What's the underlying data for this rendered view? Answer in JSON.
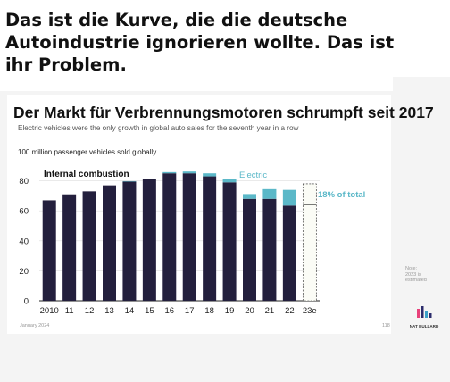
{
  "headline": [
    "Das ist die Kurve, die die deutsche",
    "Autoindustrie ignorieren wollte. Das ist",
    "ihr Problem."
  ],
  "chart_data": {
    "type": "bar",
    "stacked": true,
    "title": "Der Markt für Verbrennungsmotoren schrumpft seit 2017",
    "subtitle": "Electric vehicles were the only growth in global auto sales for the seventh year in a row",
    "ylabel": "100 million passenger vehicles sold globally",
    "xlabel": "",
    "categories": [
      "2010",
      "11",
      "12",
      "13",
      "14",
      "15",
      "16",
      "17",
      "18",
      "19",
      "20",
      "21",
      "22",
      "23e"
    ],
    "ylim": [
      0,
      90
    ],
    "yticks": [
      0,
      20,
      40,
      60,
      80
    ],
    "series": [
      {
        "name": "Internal combustion",
        "color": "#231f3d",
        "values": [
          67,
          71,
          73,
          77,
          79.5,
          81,
          85,
          85,
          83,
          79,
          68,
          68,
          63.5,
          64
        ]
      },
      {
        "name": "Electric",
        "color": "#5bb8c8",
        "values": [
          0,
          0,
          0,
          0,
          0.3,
          0.5,
          0.8,
          1.2,
          2,
          2.2,
          3.2,
          6.5,
          10.5,
          14
        ]
      }
    ],
    "estimated_index": 13,
    "annotation": "18% of total",
    "grid": true
  },
  "note": "Note:\n2023 is\nestimated",
  "footer_left": "January 2024",
  "footer_page": "118",
  "brand": "NAT BULLARD",
  "colors": {
    "ice": "#231f3d",
    "ev": "#5bb8c8",
    "ev_label": "#5bb8c8",
    "estimate_fill": "#fbfcf6"
  }
}
